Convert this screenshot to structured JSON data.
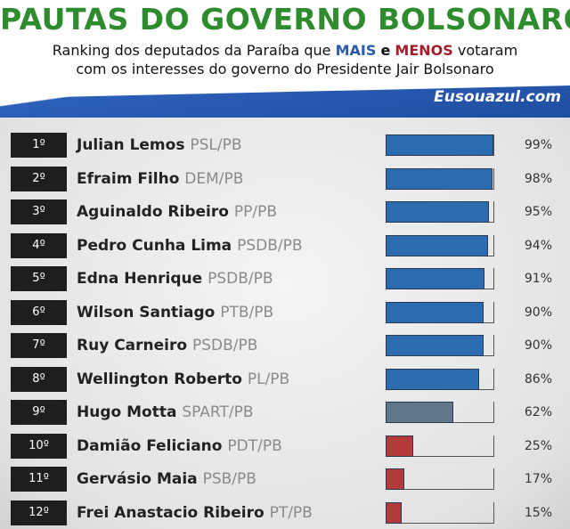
{
  "header": {
    "title": "PAUTAS DO GOVERNO BOLSONARO",
    "subtitle_line1_pre": "Ranking dos deputados da Paraíba que",
    "subtitle_mais": "MAIS",
    "subtitle_e": "e",
    "subtitle_menos": "MENOS",
    "subtitle_line1_post": "votaram",
    "subtitle_line2": "com os interesses do governo do Presidente Jair Bolsonaro",
    "brand": "Eusouazul.com"
  },
  "colors": {
    "high": "#2b6cb0",
    "mid": "#61788a",
    "low": "#b23a3a",
    "title_green": "#2e8b2e"
  },
  "chart_data": {
    "type": "bar",
    "orientation": "horizontal",
    "xlim": [
      0,
      100
    ],
    "rows": [
      {
        "rank": "1º",
        "name": "Julian Lemos",
        "party": "PSL/PB",
        "value": 99,
        "label": "99%",
        "color": "#2b6cb0"
      },
      {
        "rank": "2º",
        "name": "Efraim Filho",
        "party": "DEM/PB",
        "value": 98,
        "label": "98%",
        "color": "#2b6cb0"
      },
      {
        "rank": "3º",
        "name": "Aguinaldo Ribeiro",
        "party": "PP/PB",
        "value": 95,
        "label": "95%",
        "color": "#2b6cb0"
      },
      {
        "rank": "4º",
        "name": "Pedro Cunha Lima",
        "party": "PSDB/PB",
        "value": 94,
        "label": "94%",
        "color": "#2b6cb0"
      },
      {
        "rank": "5º",
        "name": "Edna Henrique",
        "party": "PSDB/PB",
        "value": 91,
        "label": "91%",
        "color": "#2b6cb0"
      },
      {
        "rank": "6º",
        "name": "Wilson Santiago",
        "party": "PTB/PB",
        "value": 90,
        "label": "90%",
        "color": "#2b6cb0"
      },
      {
        "rank": "7º",
        "name": "Ruy Carneiro",
        "party": "PSDB/PB",
        "value": 90,
        "label": "90%",
        "color": "#2b6cb0"
      },
      {
        "rank": "8º",
        "name": "Wellington Roberto",
        "party": "PL/PB",
        "value": 86,
        "label": "86%",
        "color": "#2b6cb0"
      },
      {
        "rank": "9º",
        "name": "Hugo Motta",
        "party": "SPART/PB",
        "value": 62,
        "label": "62%",
        "color": "#61788a"
      },
      {
        "rank": "10º",
        "name": "Damião Feliciano",
        "party": "PDT/PB",
        "value": 25,
        "label": "25%",
        "color": "#b23a3a"
      },
      {
        "rank": "11º",
        "name": "Gervásio Maia",
        "party": "PSB/PB",
        "value": 17,
        "label": "17%",
        "color": "#b23a3a"
      },
      {
        "rank": "12º",
        "name": "Frei Anastacio Ribeiro",
        "party": "PT/PB",
        "value": 15,
        "label": "15%",
        "color": "#b23a3a"
      }
    ]
  }
}
